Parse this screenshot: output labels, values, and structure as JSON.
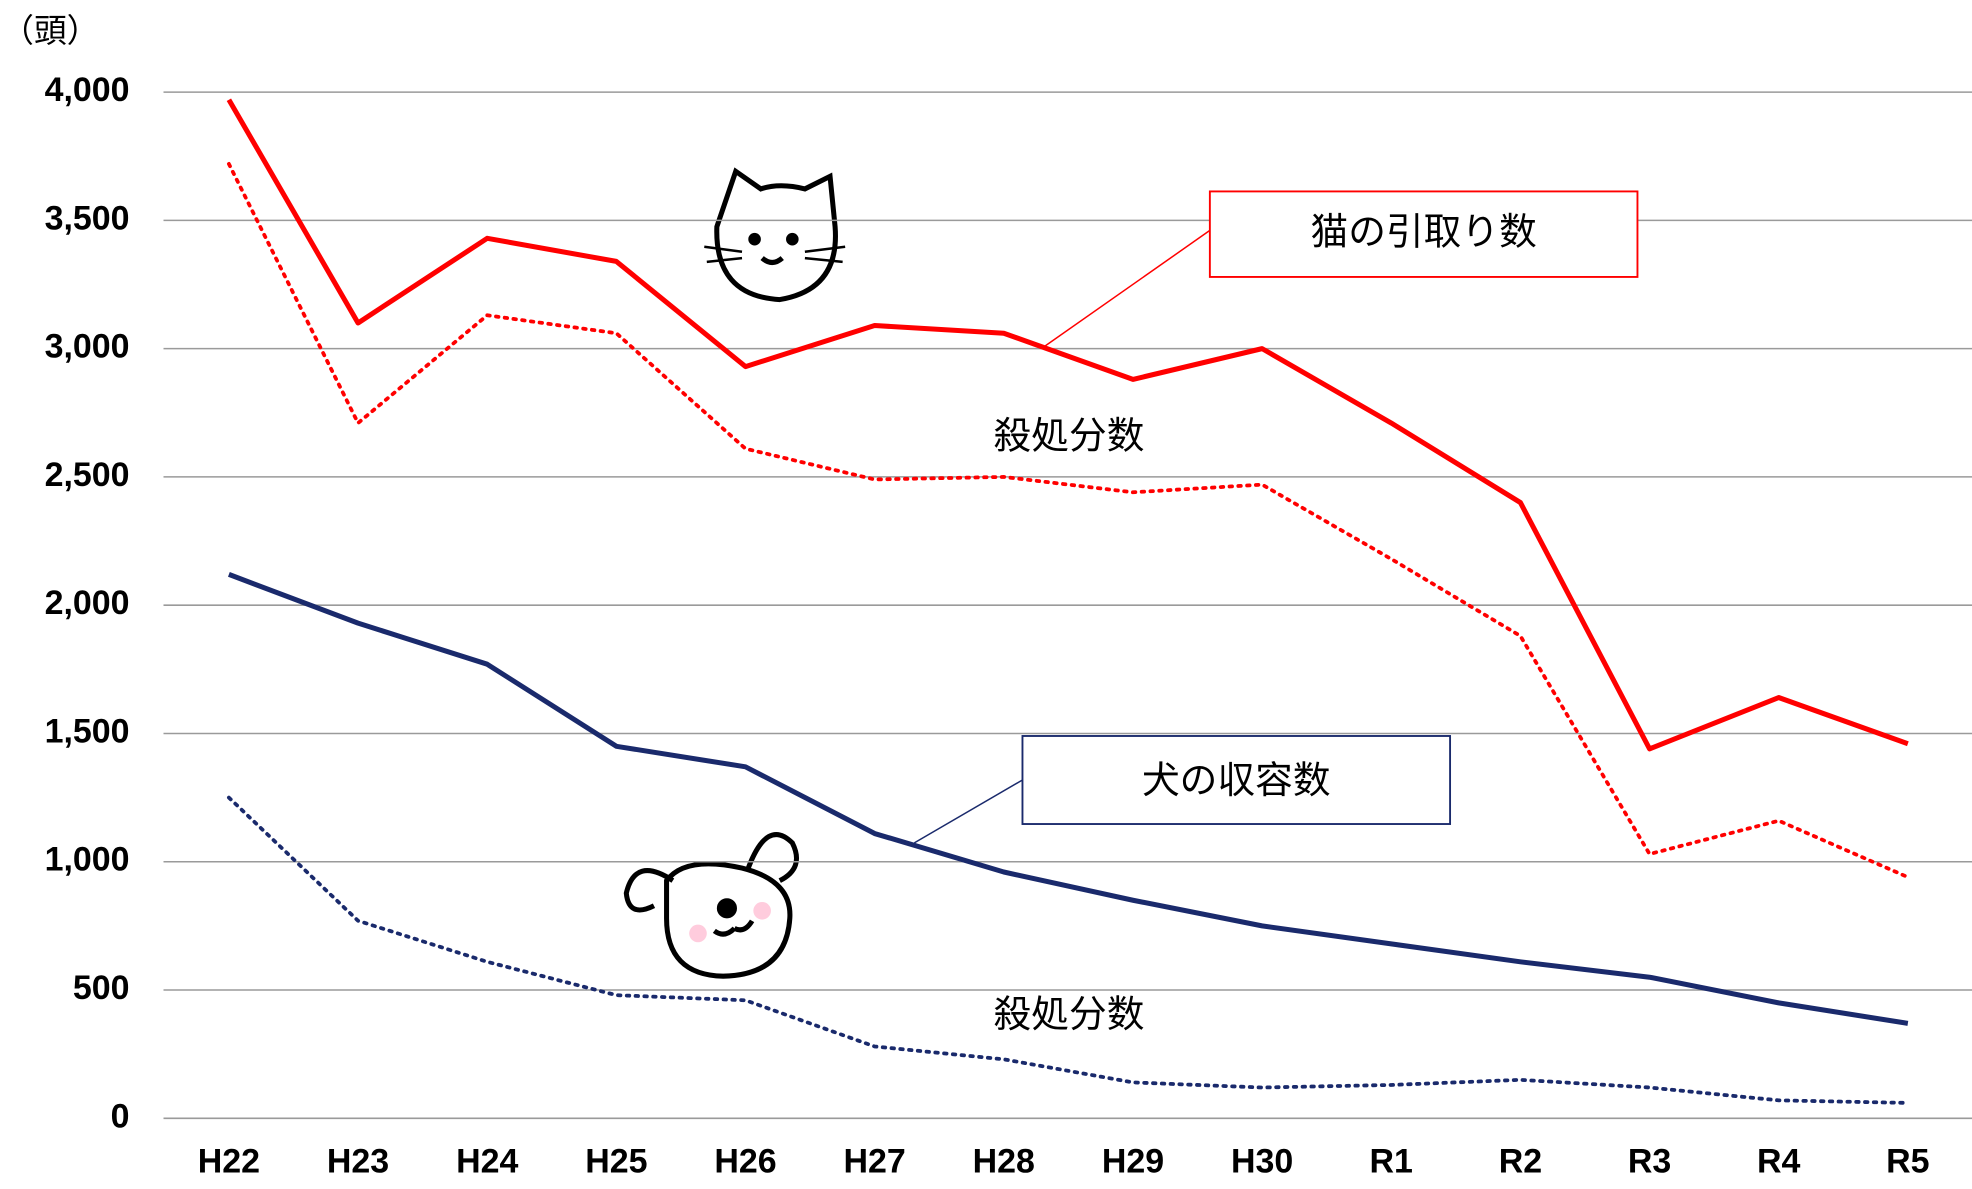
{
  "chart_data": {
    "type": "line",
    "y_label": "（頭）",
    "categories": [
      "H22",
      "H23",
      "H24",
      "H25",
      "H26",
      "H27",
      "H28",
      "H29",
      "H30",
      "R1",
      "R2",
      "R3",
      "R4",
      "R5"
    ],
    "series": [
      {
        "name": "猫の引取り数",
        "color": "#ff0000",
        "style": "solid",
        "values": [
          3970,
          3100,
          3430,
          3340,
          2930,
          3090,
          3060,
          2880,
          3000,
          2710,
          2400,
          1440,
          1640,
          1460
        ]
      },
      {
        "name": "殺処分数",
        "color": "#ff0000",
        "style": "dotted",
        "values": [
          3720,
          2710,
          3130,
          3060,
          2610,
          2490,
          2500,
          2440,
          2470,
          2180,
          1880,
          1030,
          1160,
          940
        ]
      },
      {
        "name": "犬の収容数",
        "color": "#1a2a6c",
        "style": "solid",
        "values": [
          2120,
          1930,
          1770,
          1450,
          1370,
          1110,
          960,
          850,
          750,
          680,
          610,
          550,
          450,
          370
        ]
      },
      {
        "name": "殺処分数",
        "color": "#1a2a6c",
        "style": "dotted",
        "values": [
          1250,
          770,
          610,
          480,
          460,
          280,
          230,
          140,
          120,
          130,
          150,
          120,
          70,
          60
        ]
      }
    ],
    "ylim": [
      0,
      4000
    ],
    "yticks": [
      0,
      500,
      {
        "value": 1000,
        "label": "1,000"
      },
      {
        "value": 1500,
        "label": "1,500"
      },
      {
        "value": 2000,
        "label": "2,000"
      },
      {
        "value": 2500,
        "label": "2,500"
      },
      {
        "value": 3000,
        "label": "3,000"
      },
      {
        "value": 3500,
        "label": "3,500"
      },
      {
        "value": 4000,
        "label": "4,000"
      }
    ],
    "grid": true
  }
}
